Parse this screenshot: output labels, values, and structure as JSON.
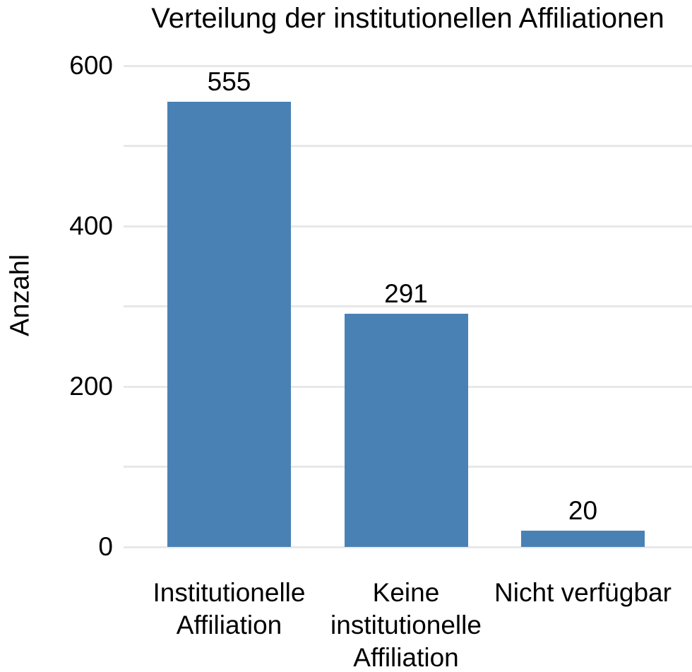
{
  "title": "Verteilung der institutionellen Affiliationen",
  "colors": {
    "bar": "#4a81b5",
    "gridline": "#e8e8e8",
    "text": "#000000",
    "background": "#ffffff"
  },
  "chart_data": {
    "type": "bar",
    "title": "Verteilung der institutionellen Affiliationen",
    "xlabel": "",
    "ylabel": "Anzahl",
    "categories": [
      "Institutionelle Affiliation",
      "Keine institutionelle Affiliation",
      "Nicht verfügbar"
    ],
    "category_display": [
      "Institutionelle\nAffiliation",
      "Keine\ninstitutionelle\nAffiliation",
      "Nicht verfügbar"
    ],
    "values": [
      555,
      291,
      20
    ],
    "bar_labels": [
      "555",
      "291",
      "20"
    ],
    "ylim": [
      0,
      630
    ],
    "yticks_labeled": [
      0,
      200,
      400,
      600
    ],
    "gridlines": [
      0,
      100,
      200,
      300,
      400,
      500,
      600
    ],
    "grid": "horizontal",
    "legend_position": "none"
  }
}
